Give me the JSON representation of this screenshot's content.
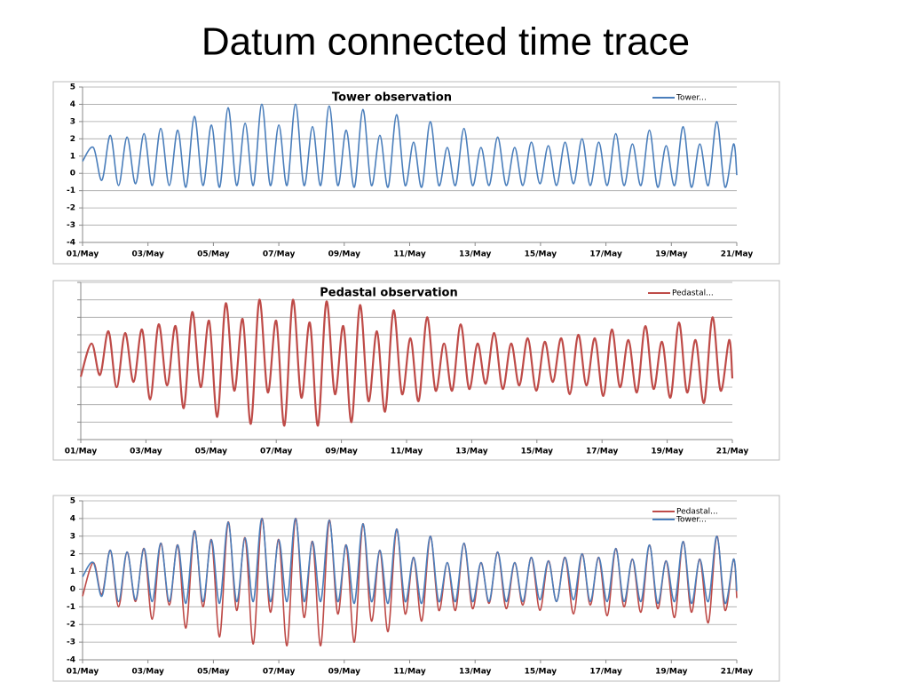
{
  "title": "Datum connected time trace",
  "chart_data": [
    {
      "type": "line",
      "title": "Tower observation",
      "x": [
        1.0,
        1.33,
        1.59,
        1.85,
        2.1,
        2.36,
        2.62,
        2.88,
        3.13,
        3.39,
        3.65,
        3.91,
        4.16,
        4.42,
        4.68,
        4.94,
        5.19,
        5.45,
        5.71,
        5.97,
        6.22,
        6.48,
        6.74,
        7.0,
        7.25,
        7.51,
        7.77,
        8.03,
        8.28,
        8.54,
        8.8,
        9.06,
        9.31,
        9.57,
        9.83,
        10.09,
        10.34,
        10.6,
        10.86,
        11.12,
        11.37,
        11.63,
        11.89,
        12.15,
        12.4,
        12.66,
        12.92,
        13.18,
        13.43,
        13.69,
        13.95,
        14.21,
        14.46,
        14.72,
        14.98,
        15.24,
        15.49,
        15.75,
        16.01,
        16.27,
        16.52,
        16.78,
        17.04,
        17.3,
        17.55,
        17.81,
        18.07,
        18.33,
        18.58,
        18.84,
        19.1,
        19.36,
        19.61,
        19.87,
        20.13,
        20.39,
        20.64,
        20.9,
        21.0
      ],
      "series": [
        {
          "name": "Tower...",
          "color": "#4a7ebb",
          "values": [
            0.7,
            1.5,
            -0.4,
            2.2,
            -0.7,
            2.1,
            -0.6,
            2.3,
            -0.7,
            2.6,
            -0.7,
            2.5,
            -0.8,
            3.3,
            -0.7,
            2.8,
            -0.8,
            3.8,
            -0.7,
            2.9,
            -0.7,
            4.0,
            -0.7,
            2.8,
            -0.7,
            4.0,
            -0.7,
            2.7,
            -0.7,
            3.9,
            -0.7,
            2.5,
            -0.8,
            3.7,
            -0.7,
            2.2,
            -0.8,
            3.4,
            -0.7,
            1.8,
            -0.8,
            3.0,
            -0.7,
            1.5,
            -0.7,
            2.6,
            -0.7,
            1.5,
            -0.7,
            2.1,
            -0.7,
            1.5,
            -0.7,
            1.8,
            -0.6,
            1.6,
            -0.7,
            1.8,
            -0.6,
            2.0,
            -0.7,
            1.8,
            -0.7,
            2.3,
            -0.7,
            1.7,
            -0.7,
            2.5,
            -0.8,
            1.6,
            -0.7,
            2.7,
            -0.8,
            1.7,
            -0.7,
            3.0,
            -0.8,
            1.7,
            -0.1
          ]
        }
      ],
      "xlim": [
        1,
        21
      ],
      "xticks": [
        {
          "value": 1,
          "label": "01/May"
        },
        {
          "value": 3,
          "label": "03/May"
        },
        {
          "value": 5,
          "label": "05/May"
        },
        {
          "value": 7,
          "label": "07/May"
        },
        {
          "value": 9,
          "label": "09/May"
        },
        {
          "value": 11,
          "label": "11/May"
        },
        {
          "value": 13,
          "label": "13/May"
        },
        {
          "value": 15,
          "label": "15/May"
        },
        {
          "value": 17,
          "label": "17/May"
        },
        {
          "value": 19,
          "label": "19/May"
        },
        {
          "value": 21,
          "label": "21/May"
        }
      ],
      "ylim": [
        -4,
        5
      ],
      "yticks": [
        -4,
        -3,
        -2,
        -1,
        0,
        1,
        2,
        3,
        4,
        5
      ],
      "ytick_labels": true,
      "grid": true,
      "legend": "upper-right"
    },
    {
      "type": "line",
      "title": "Pedastal observation",
      "x": [
        1.0,
        1.33,
        1.59,
        1.85,
        2.1,
        2.36,
        2.62,
        2.88,
        3.13,
        3.39,
        3.65,
        3.91,
        4.16,
        4.42,
        4.68,
        4.94,
        5.19,
        5.45,
        5.71,
        5.97,
        6.22,
        6.48,
        6.74,
        7.0,
        7.25,
        7.51,
        7.77,
        8.03,
        8.28,
        8.54,
        8.8,
        9.06,
        9.31,
        9.57,
        9.83,
        10.09,
        10.34,
        10.6,
        10.86,
        11.12,
        11.37,
        11.63,
        11.89,
        12.15,
        12.4,
        12.66,
        12.92,
        13.18,
        13.43,
        13.69,
        13.95,
        14.21,
        14.46,
        14.72,
        14.98,
        15.24,
        15.49,
        15.75,
        16.01,
        16.27,
        16.52,
        16.78,
        17.04,
        17.3,
        17.55,
        17.81,
        18.07,
        18.33,
        18.58,
        18.84,
        19.1,
        19.36,
        19.61,
        19.87,
        20.13,
        20.39,
        20.64,
        20.9,
        21.0
      ],
      "series": [
        {
          "name": "Pedastal...",
          "color": "#be4b48",
          "values": [
            -0.4,
            1.5,
            -0.3,
            2.2,
            -1.0,
            2.1,
            -0.7,
            2.3,
            -1.7,
            2.6,
            -0.9,
            2.5,
            -2.2,
            3.3,
            -1.0,
            2.8,
            -2.7,
            3.8,
            -1.2,
            2.9,
            -3.1,
            4.0,
            -1.3,
            2.8,
            -3.2,
            4.0,
            -1.6,
            2.7,
            -3.2,
            3.9,
            -1.4,
            2.5,
            -3.0,
            3.7,
            -1.8,
            2.2,
            -2.4,
            3.4,
            -1.4,
            1.8,
            -1.8,
            3.0,
            -1.2,
            1.5,
            -1.2,
            2.6,
            -1.1,
            1.5,
            -0.8,
            2.1,
            -1.1,
            1.5,
            -0.9,
            1.8,
            -1.2,
            1.6,
            -0.7,
            1.8,
            -1.4,
            2.0,
            -0.9,
            1.8,
            -1.5,
            2.3,
            -1.0,
            1.7,
            -1.3,
            2.5,
            -1.1,
            1.6,
            -1.6,
            2.7,
            -1.3,
            1.7,
            -1.9,
            3.0,
            -1.2,
            1.7,
            -0.5
          ]
        }
      ],
      "xlim": [
        1,
        21
      ],
      "xticks": [
        {
          "value": 1,
          "label": "01/May"
        },
        {
          "value": 3,
          "label": "03/May"
        },
        {
          "value": 5,
          "label": "05/May"
        },
        {
          "value": 7,
          "label": "07/May"
        },
        {
          "value": 9,
          "label": "09/May"
        },
        {
          "value": 11,
          "label": "11/May"
        },
        {
          "value": 13,
          "label": "13/May"
        },
        {
          "value": 15,
          "label": "15/May"
        },
        {
          "value": 17,
          "label": "17/May"
        },
        {
          "value": 19,
          "label": "19/May"
        },
        {
          "value": 21,
          "label": "21/May"
        }
      ],
      "ylim": [
        -4,
        5
      ],
      "yticks": [
        -4,
        -3,
        -2,
        -1,
        0,
        1,
        2,
        3,
        4,
        5
      ],
      "ytick_labels": false,
      "grid": true,
      "legend": "upper-right"
    },
    {
      "type": "line",
      "x": [
        1.0,
        1.33,
        1.59,
        1.85,
        2.1,
        2.36,
        2.62,
        2.88,
        3.13,
        3.39,
        3.65,
        3.91,
        4.16,
        4.42,
        4.68,
        4.94,
        5.19,
        5.45,
        5.71,
        5.97,
        6.22,
        6.48,
        6.74,
        7.0,
        7.25,
        7.51,
        7.77,
        8.03,
        8.28,
        8.54,
        8.8,
        9.06,
        9.31,
        9.57,
        9.83,
        10.09,
        10.34,
        10.6,
        10.86,
        11.12,
        11.37,
        11.63,
        11.89,
        12.15,
        12.4,
        12.66,
        12.92,
        13.18,
        13.43,
        13.69,
        13.95,
        14.21,
        14.46,
        14.72,
        14.98,
        15.24,
        15.49,
        15.75,
        16.01,
        16.27,
        16.52,
        16.78,
        17.04,
        17.3,
        17.55,
        17.81,
        18.07,
        18.33,
        18.58,
        18.84,
        19.1,
        19.36,
        19.61,
        19.87,
        20.13,
        20.39,
        20.64,
        20.9,
        21.0
      ],
      "series": [
        {
          "name": "Pedastal...",
          "color": "#be4b48",
          "values": [
            -0.4,
            1.5,
            -0.3,
            2.2,
            -1.0,
            2.1,
            -0.7,
            2.3,
            -1.7,
            2.6,
            -0.9,
            2.5,
            -2.2,
            3.3,
            -1.0,
            2.8,
            -2.7,
            3.8,
            -1.2,
            2.9,
            -3.1,
            4.0,
            -1.3,
            2.8,
            -3.2,
            4.0,
            -1.6,
            2.7,
            -3.2,
            3.9,
            -1.4,
            2.5,
            -3.0,
            3.7,
            -1.8,
            2.2,
            -2.4,
            3.4,
            -1.4,
            1.8,
            -1.8,
            3.0,
            -1.2,
            1.5,
            -1.2,
            2.6,
            -1.1,
            1.5,
            -0.8,
            2.1,
            -1.1,
            1.5,
            -0.9,
            1.8,
            -1.2,
            1.6,
            -0.7,
            1.8,
            -1.4,
            2.0,
            -0.9,
            1.8,
            -1.5,
            2.3,
            -1.0,
            1.7,
            -1.3,
            2.5,
            -1.1,
            1.6,
            -1.6,
            2.7,
            -1.3,
            1.7,
            -1.9,
            3.0,
            -1.2,
            1.7,
            -0.5
          ]
        },
        {
          "name": "Tower...",
          "color": "#4a7ebb",
          "values": [
            0.7,
            1.5,
            -0.4,
            2.2,
            -0.7,
            2.1,
            -0.6,
            2.3,
            -0.7,
            2.6,
            -0.7,
            2.5,
            -0.8,
            3.3,
            -0.7,
            2.8,
            -0.8,
            3.8,
            -0.7,
            2.9,
            -0.7,
            4.0,
            -0.7,
            2.8,
            -0.7,
            4.0,
            -0.7,
            2.7,
            -0.7,
            3.9,
            -0.7,
            2.5,
            -0.8,
            3.7,
            -0.7,
            2.2,
            -0.8,
            3.4,
            -0.7,
            1.8,
            -0.8,
            3.0,
            -0.7,
            1.5,
            -0.7,
            2.6,
            -0.7,
            1.5,
            -0.7,
            2.1,
            -0.7,
            1.5,
            -0.7,
            1.8,
            -0.6,
            1.6,
            -0.7,
            1.8,
            -0.6,
            2.0,
            -0.7,
            1.8,
            -0.7,
            2.3,
            -0.7,
            1.7,
            -0.7,
            2.5,
            -0.8,
            1.6,
            -0.7,
            2.7,
            -0.8,
            1.7,
            -0.7,
            3.0,
            -0.8,
            1.7,
            -0.1
          ]
        }
      ],
      "xlim": [
        1,
        21
      ],
      "xticks": [
        {
          "value": 1,
          "label": "01/May"
        },
        {
          "value": 3,
          "label": "03/May"
        },
        {
          "value": 5,
          "label": "05/May"
        },
        {
          "value": 7,
          "label": "07/May"
        },
        {
          "value": 9,
          "label": "09/May"
        },
        {
          "value": 11,
          "label": "11/May"
        },
        {
          "value": 13,
          "label": "13/May"
        },
        {
          "value": 15,
          "label": "15/May"
        },
        {
          "value": 17,
          "label": "17/May"
        },
        {
          "value": 19,
          "label": "19/May"
        },
        {
          "value": 21,
          "label": "21/May"
        }
      ],
      "ylim": [
        -4,
        5
      ],
      "yticks": [
        -4,
        -3,
        -2,
        -1,
        0,
        1,
        2,
        3,
        4,
        5
      ],
      "ytick_labels": true,
      "grid": true,
      "legend": "upper-right"
    }
  ]
}
